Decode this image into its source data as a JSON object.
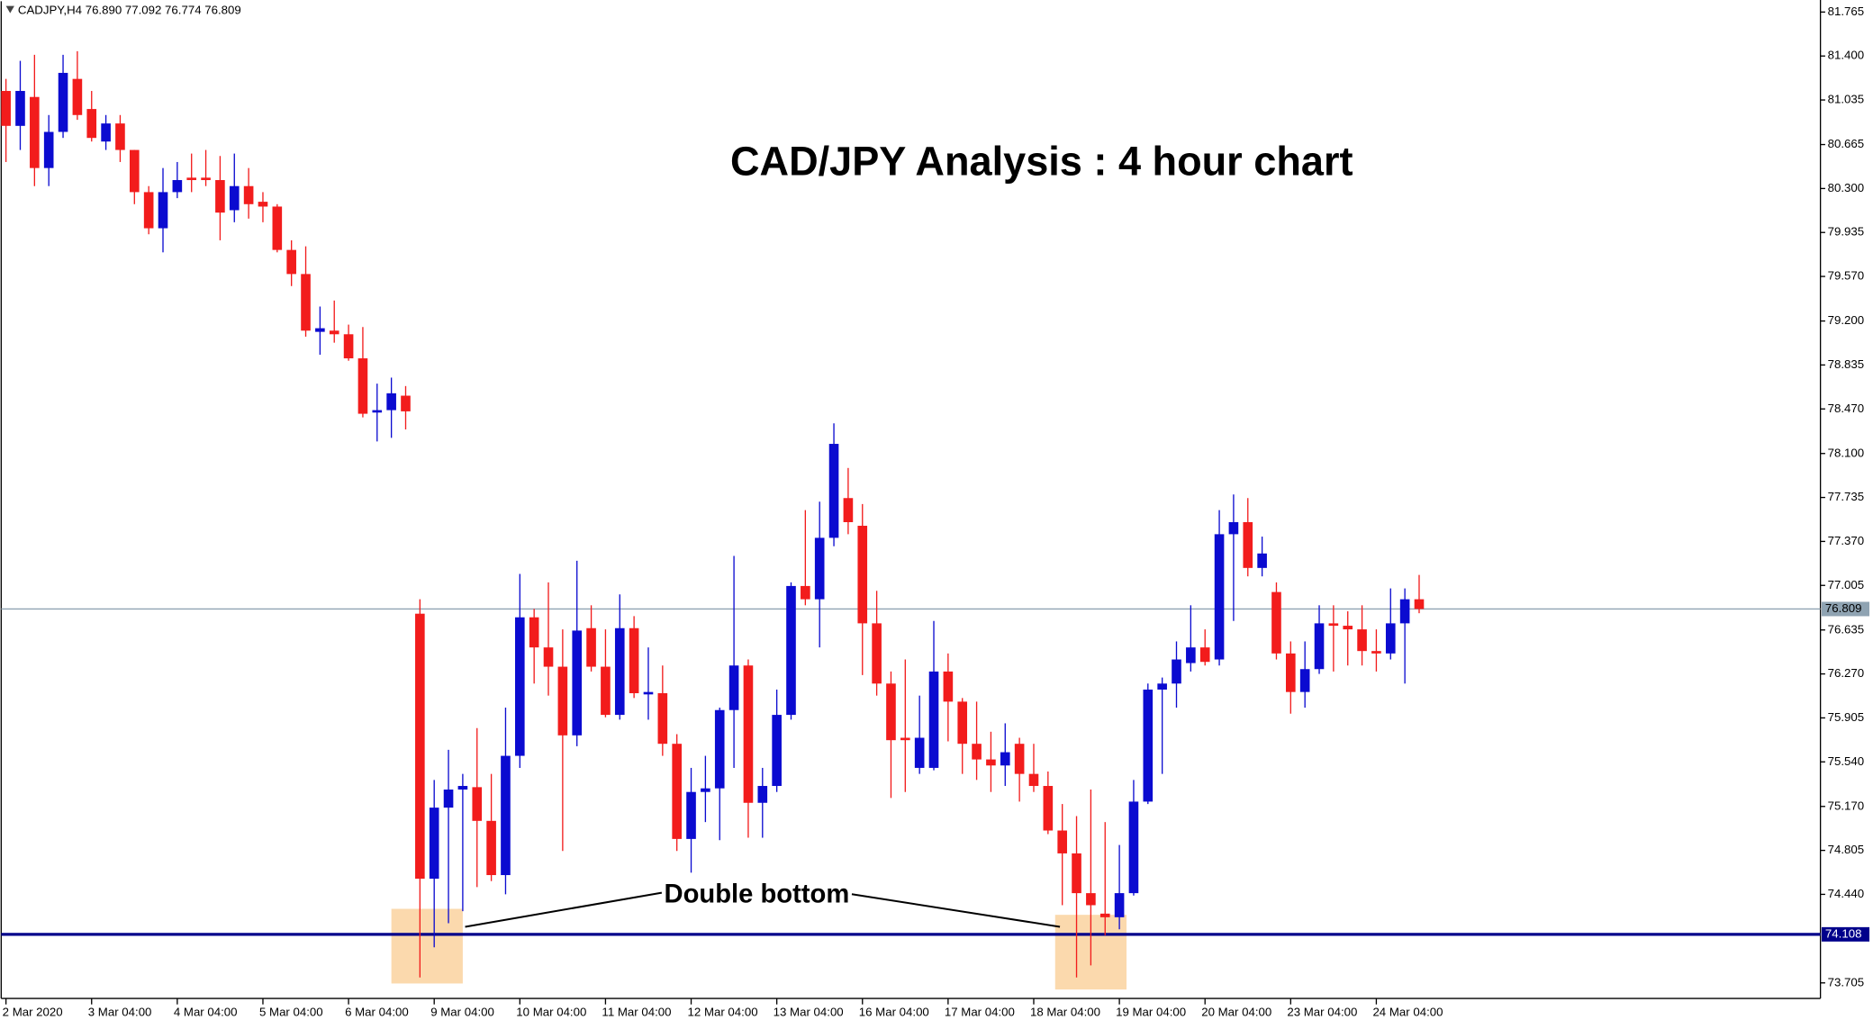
{
  "chart_data": {
    "type": "candlestick",
    "info": "CADJPY,H4  76.890 77.092 76.774 76.809",
    "title": "CAD/JPY Analysis : 4 hour chart",
    "categories": [
      "2 Mar 2020",
      null,
      null,
      null,
      null,
      null,
      "3 Mar 04:00",
      null,
      null,
      null,
      null,
      null,
      "4 Mar 04:00",
      null,
      null,
      null,
      null,
      null,
      "5 Mar 04:00",
      null,
      null,
      null,
      null,
      null,
      "6 Mar 04:00",
      null,
      null,
      null,
      null,
      null,
      "9 Mar 04:00",
      null,
      null,
      null,
      null,
      null,
      "10 Mar 04:00",
      null,
      null,
      null,
      null,
      null,
      "11 Mar 04:00",
      null,
      null,
      null,
      null,
      null,
      "12 Mar 04:00",
      null,
      null,
      null,
      null,
      null,
      "13 Mar 04:00",
      null,
      null,
      null,
      null,
      null,
      "16 Mar 04:00",
      null,
      null,
      null,
      null,
      null,
      "17 Mar 04:00",
      null,
      null,
      null,
      null,
      null,
      "18 Mar 04:00",
      null,
      null,
      null,
      null,
      null,
      "19 Mar 04:00",
      null,
      null,
      null,
      null,
      null,
      "20 Mar 04:00",
      null,
      null,
      null,
      null,
      null,
      "23 Mar 04:00",
      null,
      null,
      null,
      null,
      null,
      "24 Mar 04:00",
      null,
      null,
      null
    ],
    "open": [
      81.11,
      80.82,
      81.06,
      80.47,
      80.77,
      81.21,
      80.96,
      80.69,
      80.84,
      80.62,
      80.27,
      79.97,
      80.27,
      80.39,
      80.39,
      80.37,
      80.12,
      80.32,
      80.19,
      80.15,
      79.79,
      79.59,
      79.11,
      79.12,
      79.09,
      78.89,
      78.44,
      78.46,
      78.58,
      76.77,
      74.57,
      75.16,
      75.31,
      75.33,
      75.05,
      74.6,
      75.59,
      76.74,
      76.49,
      76.33,
      75.76,
      76.65,
      76.33,
      75.93,
      76.65,
      76.1,
      76.11,
      75.69,
      74.9,
      75.29,
      75.32,
      75.97,
      76.34,
      75.2,
      75.34,
      75.93,
      77.0,
      76.89,
      77.4,
      77.73,
      77.5,
      76.69,
      76.19,
      75.74,
      75.49,
      75.49,
      76.29,
      76.04,
      75.69,
      75.56,
      75.51,
      75.69,
      75.44,
      75.34,
      74.97,
      74.78,
      74.45,
      74.28,
      74.25,
      74.45,
      75.21,
      76.14,
      76.19,
      76.36,
      76.49,
      76.39,
      77.43,
      77.53,
      77.15,
      76.95,
      76.44,
      76.12,
      76.31,
      76.69,
      76.67,
      76.64,
      76.46,
      76.44,
      76.69,
      76.89
    ],
    "high": [
      81.21,
      81.36,
      81.41,
      80.91,
      81.41,
      81.44,
      81.11,
      80.91,
      80.91,
      80.62,
      80.32,
      80.47,
      80.52,
      80.59,
      80.62,
      80.57,
      80.59,
      80.47,
      80.27,
      80.17,
      79.87,
      79.82,
      79.32,
      79.37,
      79.17,
      79.15,
      78.68,
      78.73,
      78.66,
      76.89,
      75.39,
      75.64,
      75.44,
      75.82,
      75.44,
      75.99,
      77.1,
      76.81,
      77.03,
      76.64,
      77.21,
      76.84,
      76.64,
      76.93,
      76.75,
      76.49,
      76.34,
      75.77,
      75.49,
      75.59,
      75.99,
      77.25,
      76.39,
      75.49,
      76.14,
      77.03,
      77.63,
      77.7,
      78.35,
      77.98,
      77.68,
      76.96,
      76.29,
      76.39,
      76.09,
      76.71,
      76.44,
      76.07,
      76.04,
      75.79,
      75.86,
      75.74,
      75.69,
      75.46,
      75.19,
      75.09,
      75.31,
      75.04,
      74.85,
      75.39,
      76.19,
      76.24,
      76.54,
      76.84,
      76.64,
      77.63,
      77.76,
      77.73,
      77.41,
      77.03,
      76.54,
      76.54,
      76.84,
      76.84,
      76.79,
      76.84,
      76.64,
      76.98,
      76.98,
      77.092
    ],
    "low": [
      80.52,
      80.62,
      80.32,
      80.32,
      80.72,
      80.87,
      80.69,
      80.62,
      80.52,
      80.17,
      79.92,
      79.77,
      80.22,
      80.27,
      80.32,
      79.87,
      80.02,
      80.05,
      80.02,
      79.77,
      79.49,
      79.07,
      78.92,
      79.02,
      78.87,
      78.4,
      78.2,
      78.23,
      78.3,
      73.75,
      74.0,
      74.2,
      74.3,
      74.5,
      74.55,
      74.44,
      75.49,
      76.19,
      76.09,
      74.8,
      75.67,
      76.29,
      75.91,
      75.89,
      76.07,
      75.89,
      75.59,
      74.8,
      74.62,
      75.04,
      74.89,
      75.49,
      74.91,
      74.91,
      75.29,
      75.89,
      76.84,
      76.49,
      77.33,
      77.43,
      76.26,
      76.09,
      75.24,
      75.29,
      75.44,
      75.47,
      75.71,
      75.44,
      75.39,
      75.29,
      75.34,
      75.21,
      75.29,
      74.94,
      74.35,
      73.75,
      73.85,
      74.1,
      74.15,
      74.43,
      75.19,
      75.44,
      75.99,
      76.29,
      76.34,
      76.34,
      76.71,
      77.08,
      77.08,
      76.39,
      75.94,
      75.99,
      76.27,
      76.29,
      76.34,
      76.34,
      76.29,
      76.39,
      76.19,
      76.774
    ],
    "close": [
      80.82,
      81.11,
      80.47,
      80.77,
      81.26,
      80.91,
      80.72,
      80.84,
      80.62,
      80.27,
      79.97,
      80.27,
      80.37,
      80.37,
      80.37,
      80.1,
      80.32,
      80.17,
      80.15,
      79.79,
      79.59,
      79.12,
      79.14,
      79.09,
      78.89,
      78.43,
      78.46,
      78.6,
      78.45,
      74.57,
      75.16,
      75.31,
      75.34,
      75.05,
      74.6,
      75.59,
      76.74,
      76.49,
      76.33,
      75.76,
      76.63,
      76.33,
      75.93,
      76.65,
      76.11,
      76.12,
      75.69,
      74.9,
      75.29,
      75.32,
      75.97,
      76.34,
      75.2,
      75.34,
      75.93,
      77.0,
      76.89,
      77.4,
      78.18,
      77.53,
      76.69,
      76.19,
      75.72,
      75.72,
      75.74,
      76.29,
      76.04,
      75.69,
      75.56,
      75.51,
      75.62,
      75.44,
      75.34,
      74.97,
      74.78,
      74.45,
      74.35,
      74.25,
      74.45,
      75.21,
      76.14,
      76.19,
      76.39,
      76.49,
      76.37,
      77.43,
      77.53,
      77.15,
      77.27,
      76.44,
      76.12,
      76.31,
      76.69,
      76.67,
      76.64,
      76.46,
      76.44,
      76.69,
      76.89,
      76.809
    ],
    "up_color": "#0b0bd0",
    "down_color": "#f21c1c",
    "ylim": [
      73.576,
      81.865
    ],
    "yticks": [
      81.765,
      {
        "value": 81.4,
        "label": "81.400"
      },
      81.035,
      80.665,
      {
        "value": 80.3,
        "label": "80.300"
      },
      79.935,
      {
        "value": 79.57,
        "label": "79.570"
      },
      {
        "value": 79.2,
        "label": "79.200"
      },
      78.835,
      {
        "value": 78.47,
        "label": "78.470"
      },
      {
        "value": 78.1,
        "label": "78.100"
      },
      77.735,
      {
        "value": 77.37,
        "label": "77.370"
      },
      77.005,
      76.635,
      {
        "value": 76.27,
        "label": "76.270"
      },
      75.905,
      {
        "value": 75.54,
        "label": "75.540"
      },
      {
        "value": 75.17,
        "label": "75.170"
      },
      74.805,
      {
        "value": 74.44,
        "label": "74.440"
      },
      73.705
    ],
    "levels": [
      {
        "value": 76.809,
        "label": "76.809",
        "color": "#8fa3b2"
      },
      {
        "value": 74.108,
        "label": "74.108",
        "color": "#00008b"
      }
    ],
    "annotation": {
      "text": "Double bottom"
    },
    "zones": [
      {
        "x": [
          27,
          32
        ],
        "y": [
          73.7,
          74.32
        ]
      },
      {
        "x": [
          73.5,
          78.5
        ],
        "y": [
          73.65,
          74.27
        ]
      }
    ],
    "zone_color": "#fbd9ad"
  }
}
